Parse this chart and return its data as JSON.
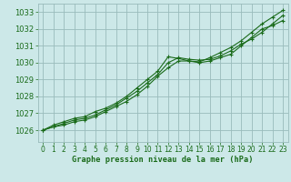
{
  "background_color": "#cce8e8",
  "plot_bg_color": "#cce8e8",
  "grid_color": "#99bbbb",
  "line_color": "#1a6b1a",
  "title": "Graphe pression niveau de la mer (hPa)",
  "label_color": "#1a6b1a",
  "ylim": [
    1025.3,
    1033.5
  ],
  "xlim": [
    -0.5,
    23.5
  ],
  "yticks": [
    1026,
    1027,
    1028,
    1029,
    1030,
    1031,
    1032,
    1033
  ],
  "xticks": [
    0,
    1,
    2,
    3,
    4,
    5,
    6,
    7,
    8,
    9,
    10,
    11,
    12,
    13,
    14,
    15,
    16,
    17,
    18,
    19,
    20,
    21,
    22,
    23
  ],
  "series1": [
    1026.0,
    1026.2,
    1026.3,
    1026.5,
    1026.6,
    1026.8,
    1027.1,
    1027.4,
    1027.7,
    1028.1,
    1028.6,
    1029.2,
    1029.7,
    1030.1,
    1030.1,
    1030.0,
    1030.1,
    1030.3,
    1030.5,
    1031.0,
    1031.5,
    1032.0,
    1032.2,
    1032.5
  ],
  "series2": [
    1026.0,
    1026.2,
    1026.4,
    1026.6,
    1026.7,
    1026.9,
    1027.2,
    1027.5,
    1027.9,
    1028.3,
    1028.8,
    1029.3,
    1030.0,
    1030.3,
    1030.2,
    1030.15,
    1030.2,
    1030.4,
    1030.7,
    1031.1,
    1031.4,
    1031.8,
    1032.3,
    1032.8
  ],
  "series3": [
    1026.0,
    1026.3,
    1026.5,
    1026.7,
    1026.8,
    1027.1,
    1027.3,
    1027.6,
    1028.0,
    1028.5,
    1029.0,
    1029.5,
    1030.35,
    1030.25,
    1030.1,
    1030.05,
    1030.3,
    1030.6,
    1030.9,
    1031.3,
    1031.8,
    1032.3,
    1032.7,
    1033.1
  ],
  "marker": "+",
  "marker_size": 3.5,
  "linewidth": 0.8,
  "tick_fontsize": 6.0,
  "xlabel_fontsize": 6.2
}
